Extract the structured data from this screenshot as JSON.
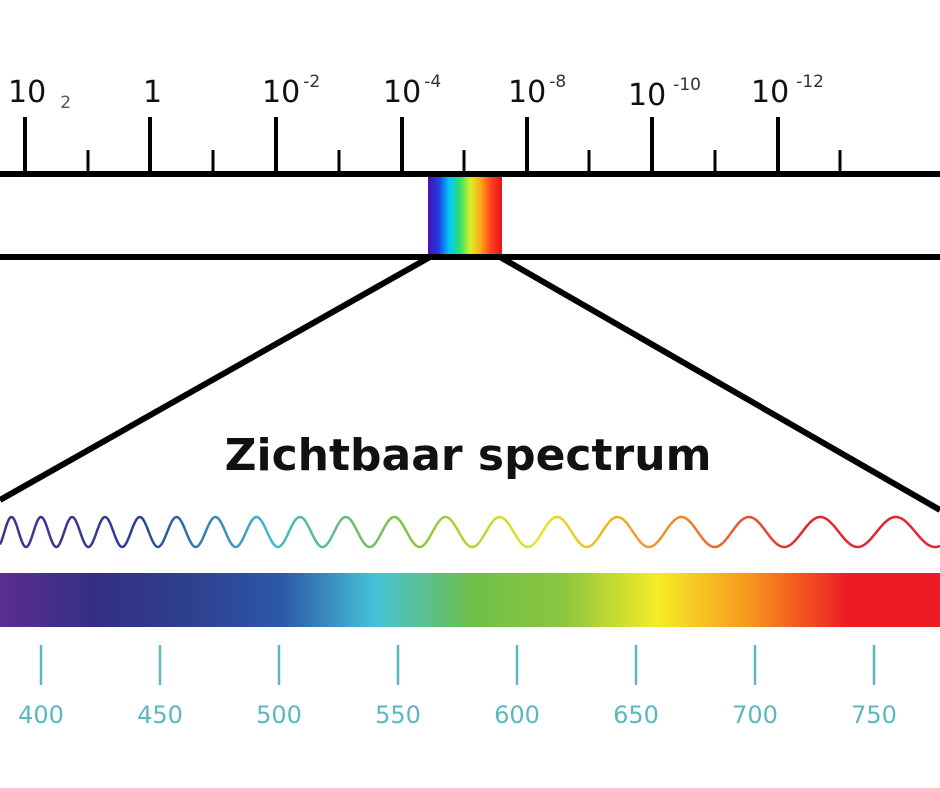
{
  "title": "Zichtbaar spectrum",
  "colors": {
    "line": "#000000",
    "nm_scale": "#5bb8c2",
    "wave_stops": [
      "#4b2d8f",
      "#2b3f93",
      "#3fb9d0",
      "#7fc242",
      "#e8e626",
      "#f08a2c",
      "#e72530",
      "#e72530"
    ],
    "bar_stops": [
      "#5a2e8e",
      "#352e86",
      "#2e3f8f",
      "#2d58a8",
      "#46c2d8",
      "#6cbf4a",
      "#8cc63e",
      "#f4ec26",
      "#f7941e",
      "#ed1c24",
      "#ed1c24"
    ],
    "mini_stops": [
      "#4b0fb5",
      "#1f3de0",
      "#00c8ff",
      "#2ee06a",
      "#d8f028",
      "#ffa61a",
      "#ff3c1e",
      "#e4141e"
    ]
  },
  "top_scale": {
    "labels": [
      {
        "base": "10",
        "sup": "",
        "sub": "2"
      },
      {
        "base": "1",
        "sup": "",
        "sub": ""
      },
      {
        "base": "10",
        "sup": "-2",
        "sub": ""
      },
      {
        "base": "10",
        "sup": "-4",
        "sub": ""
      },
      {
        "base": "10",
        "sup": "-8",
        "sub": ""
      },
      {
        "base": "10",
        "sup": "-10",
        "sub": ""
      },
      {
        "base": "10",
        "sup": "-12",
        "sub": ""
      }
    ]
  },
  "nm_scale": {
    "labels": [
      "400",
      "450",
      "500",
      "550",
      "600",
      "650",
      "700",
      "750"
    ]
  }
}
